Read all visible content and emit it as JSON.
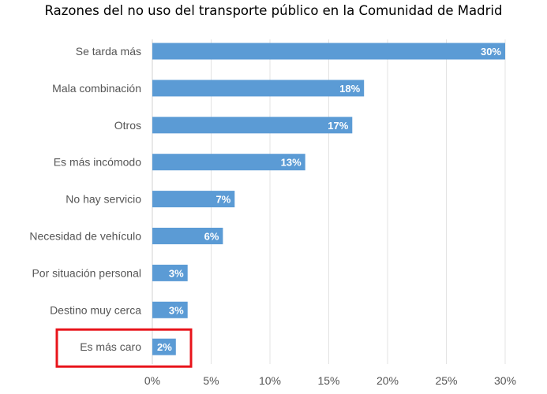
{
  "chart_data": {
    "type": "bar",
    "orientation": "horizontal",
    "title": "Razones del no uso del transporte público en la Comunidad de Madrid",
    "categories": [
      "Se tarda más",
      "Mala combinación",
      "Otros",
      "Es más incómodo",
      "No hay servicio",
      "Necesidad de vehículo",
      "Por situación personal",
      "Destino muy cerca",
      "Es más caro"
    ],
    "values": [
      30,
      18,
      17,
      13,
      7,
      6,
      3,
      3,
      2
    ],
    "data_labels": [
      "30%",
      "18%",
      "17%",
      "13%",
      "7%",
      "6%",
      "3%",
      "3%",
      "2%"
    ],
    "xlim": [
      0,
      30
    ],
    "x_ticks": [
      "0%",
      "5%",
      "10%",
      "15%",
      "20%",
      "25%",
      "30%"
    ],
    "grid": true,
    "bar_color": "#5b9bd5",
    "highlight": {
      "category": "Es más caro",
      "color": "#e8141b"
    }
  }
}
